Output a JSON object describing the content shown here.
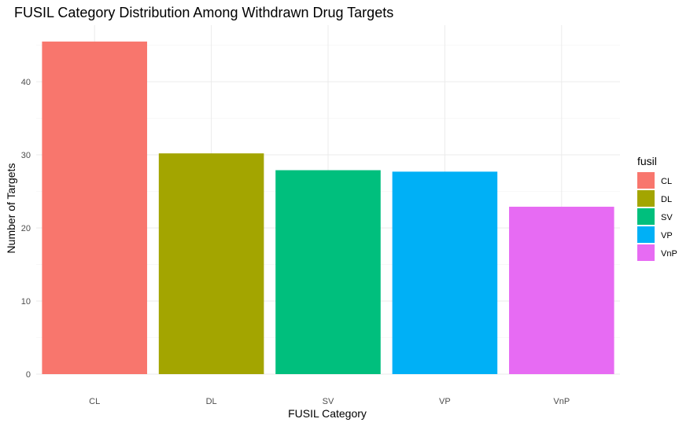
{
  "chart_data": {
    "type": "bar",
    "title": "FUSIL Category Distribution Among Withdrawn Drug Targets",
    "xlabel": "FUSIL Category",
    "ylabel": "Number of Targets",
    "categories": [
      "CL",
      "DL",
      "SV",
      "VP",
      "VnP"
    ],
    "values": [
      45.5,
      30.2,
      27.9,
      27.7,
      22.9
    ],
    "colors": [
      "#F8766D",
      "#A3A500",
      "#00BF7D",
      "#00B0F6",
      "#E76BF3"
    ],
    "ylim": [
      0,
      48
    ],
    "yticks": [
      0,
      10,
      20,
      30,
      40
    ],
    "grid": true,
    "legend": {
      "title": "fusil",
      "position": "right",
      "entries": [
        "CL",
        "DL",
        "SV",
        "VP",
        "VnP"
      ]
    }
  }
}
